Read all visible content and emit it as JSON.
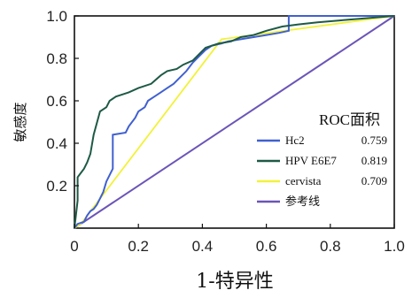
{
  "chart_data": {
    "type": "line",
    "title": "",
    "xlabel": "1-特异性",
    "ylabel": "敏感度",
    "xlim": [
      0,
      1
    ],
    "ylim": [
      0,
      1
    ],
    "x_ticks": [
      "0",
      "0.2",
      "0.4",
      "0.6",
      "0.8",
      "1.0"
    ],
    "y_ticks": [
      "0.2",
      "0.4",
      "0.6",
      "0.8",
      "1.0"
    ],
    "grid": false,
    "legend_position": "right-center",
    "legend_title": "ROC面积",
    "series": [
      {
        "name": "Hc2",
        "auc": "0.759",
        "color": "#4060d0",
        "points": [
          [
            0,
            0
          ],
          [
            0.01,
            0.02
          ],
          [
            0.03,
            0.03
          ],
          [
            0.04,
            0.06
          ],
          [
            0.05,
            0.08
          ],
          [
            0.06,
            0.09
          ],
          [
            0.07,
            0.11
          ],
          [
            0.08,
            0.14
          ],
          [
            0.09,
            0.17
          ],
          [
            0.1,
            0.22
          ],
          [
            0.12,
            0.28
          ],
          [
            0.12,
            0.44
          ],
          [
            0.16,
            0.45
          ],
          [
            0.17,
            0.48
          ],
          [
            0.19,
            0.52
          ],
          [
            0.2,
            0.55
          ],
          [
            0.22,
            0.57
          ],
          [
            0.23,
            0.6
          ],
          [
            0.25,
            0.62
          ],
          [
            0.27,
            0.64
          ],
          [
            0.29,
            0.66
          ],
          [
            0.31,
            0.68
          ],
          [
            0.33,
            0.71
          ],
          [
            0.35,
            0.74
          ],
          [
            0.37,
            0.78
          ],
          [
            0.39,
            0.81
          ],
          [
            0.41,
            0.84
          ],
          [
            0.43,
            0.86
          ],
          [
            0.46,
            0.87
          ],
          [
            0.48,
            0.88
          ],
          [
            0.52,
            0.89
          ],
          [
            0.56,
            0.9
          ],
          [
            0.6,
            0.91
          ],
          [
            0.64,
            0.92
          ],
          [
            0.67,
            0.93
          ],
          [
            0.67,
            1.0
          ],
          [
            1.0,
            1.0
          ]
        ]
      },
      {
        "name": "HPV E6E7",
        "auc": "0.819",
        "color": "#1e5a46",
        "points": [
          [
            0,
            0
          ],
          [
            0.01,
            0.13
          ],
          [
            0.01,
            0.24
          ],
          [
            0.02,
            0.26
          ],
          [
            0.03,
            0.28
          ],
          [
            0.04,
            0.31
          ],
          [
            0.05,
            0.35
          ],
          [
            0.06,
            0.44
          ],
          [
            0.08,
            0.55
          ],
          [
            0.1,
            0.57
          ],
          [
            0.11,
            0.6
          ],
          [
            0.13,
            0.62
          ],
          [
            0.15,
            0.63
          ],
          [
            0.17,
            0.64
          ],
          [
            0.2,
            0.66
          ],
          [
            0.24,
            0.68
          ],
          [
            0.27,
            0.72
          ],
          [
            0.29,
            0.74
          ],
          [
            0.32,
            0.75
          ],
          [
            0.34,
            0.77
          ],
          [
            0.37,
            0.79
          ],
          [
            0.39,
            0.82
          ],
          [
            0.41,
            0.85
          ],
          [
            0.45,
            0.87
          ],
          [
            0.49,
            0.88
          ],
          [
            0.52,
            0.9
          ],
          [
            0.56,
            0.91
          ],
          [
            0.6,
            0.93
          ],
          [
            0.65,
            0.95
          ],
          [
            0.7,
            0.96
          ],
          [
            0.76,
            0.97
          ],
          [
            0.84,
            0.98
          ],
          [
            0.92,
            0.99
          ],
          [
            1.0,
            1.0
          ]
        ]
      },
      {
        "name": "cervista",
        "auc": "0.709",
        "color": "#f2f23a",
        "points": [
          [
            0,
            0
          ],
          [
            0.02,
            0.02
          ],
          [
            0.46,
            0.89
          ],
          [
            1.0,
            1.0
          ]
        ]
      },
      {
        "name": "参考线",
        "auc": "",
        "color": "#6b55b8",
        "points": [
          [
            0,
            0
          ],
          [
            1,
            1
          ]
        ]
      }
    ]
  }
}
